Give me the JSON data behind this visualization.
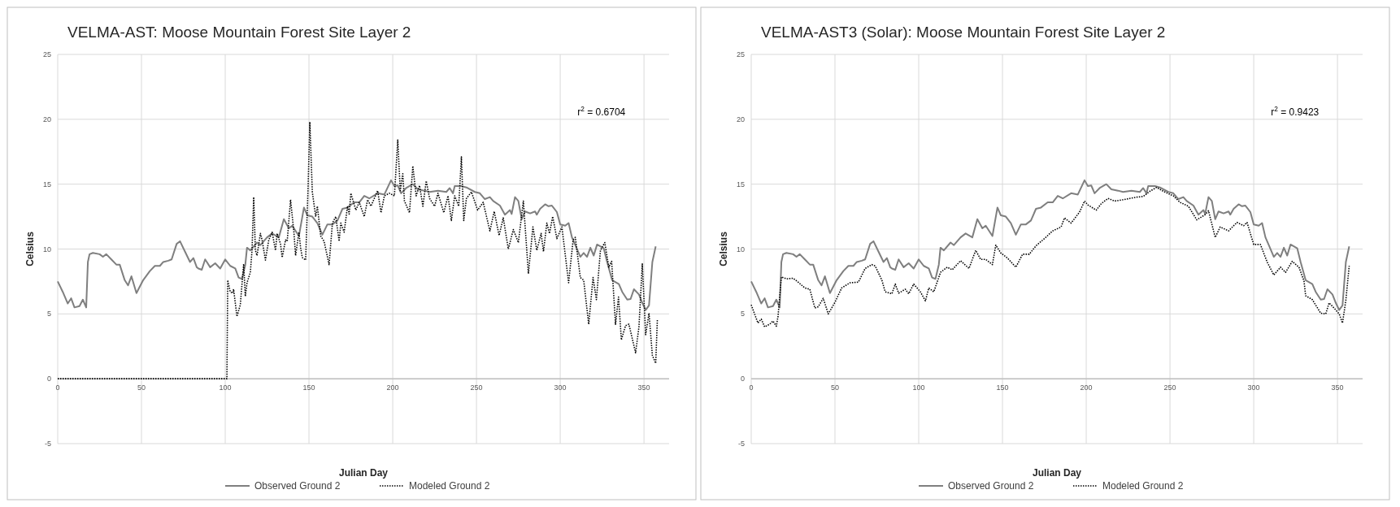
{
  "chart_data": [
    {
      "type": "line",
      "title": "VELMA-AST: Moose Mountain Forest Site Layer 2",
      "xlabel": "Julian Day",
      "ylabel": "Celsius",
      "annotations": [
        "r$^{2}$ = 0.6704"
      ],
      "xlim": [
        0,
        365
      ],
      "ylim": [
        -5,
        25
      ],
      "xticks": [
        0,
        50,
        100,
        150,
        200,
        250,
        300,
        350
      ],
      "yticks": [
        -5,
        0,
        5,
        10,
        15,
        20,
        25
      ],
      "grid": true,
      "legend": "bottom",
      "marker": "none",
      "series": [
        {
          "name": "Observed Ground 2",
          "color": "#7f7f7f",
          "line_style": "solid",
          "x": [
            0,
            3,
            6,
            8,
            10,
            13,
            15,
            17,
            18,
            19,
            21,
            25,
            27,
            29,
            32,
            35,
            37,
            40,
            42,
            44,
            47,
            51,
            55,
            58,
            61,
            63,
            66,
            68,
            71,
            73,
            76,
            79,
            81,
            83,
            84,
            86,
            88,
            91,
            94,
            97,
            100,
            103,
            106,
            108,
            110,
            112,
            113,
            115,
            119,
            121,
            125,
            128,
            132,
            135,
            138,
            140,
            144,
            147,
            149,
            152,
            155,
            158,
            161,
            164,
            167,
            170,
            173,
            177,
            180,
            183,
            186,
            191,
            195,
            199,
            201,
            203,
            205,
            208,
            212,
            215,
            219,
            222,
            227,
            232,
            234,
            236,
            237,
            241,
            244,
            249,
            252,
            255,
            258,
            260,
            264,
            267,
            270,
            271,
            273,
            275,
            277,
            279,
            282,
            285,
            286,
            288,
            291,
            293,
            295,
            298,
            300,
            303,
            305,
            307,
            309,
            312,
            314,
            316,
            318,
            320,
            322,
            326,
            328,
            331,
            335,
            337,
            340,
            342,
            344,
            347,
            349,
            351,
            353,
            355,
            357
          ],
          "values": [
            7.5,
            6.7,
            5.8,
            6.2,
            5.5,
            5.6,
            6.1,
            5.5,
            9.0,
            9.6,
            9.7,
            9.6,
            9.4,
            9.6,
            9.2,
            8.8,
            8.8,
            7.6,
            7.2,
            7.9,
            6.6,
            7.6,
            8.3,
            8.7,
            8.7,
            9.0,
            9.1,
            9.2,
            10.4,
            10.6,
            9.8,
            9.0,
            9.3,
            8.6,
            8.5,
            8.4,
            9.2,
            8.6,
            8.9,
            8.5,
            9.2,
            8.7,
            8.5,
            7.8,
            7.7,
            8.8,
            10.1,
            9.9,
            10.5,
            10.3,
            10.9,
            11.2,
            10.9,
            12.3,
            11.6,
            11.8,
            11.0,
            13.2,
            12.6,
            12.5,
            12.0,
            11.1,
            11.9,
            11.9,
            12.2,
            13.1,
            13.2,
            13.6,
            13.6,
            14.1,
            13.9,
            14.3,
            14.2,
            15.3,
            14.85,
            14.9,
            14.3,
            14.7,
            15.0,
            14.6,
            14.5,
            14.4,
            14.5,
            14.4,
            14.7,
            14.3,
            14.85,
            14.85,
            14.75,
            14.4,
            14.3,
            13.85,
            14.0,
            13.7,
            13.35,
            12.65,
            13.0,
            12.7,
            14.0,
            13.7,
            12.3,
            12.9,
            12.75,
            12.9,
            12.65,
            13.1,
            13.45,
            13.3,
            13.35,
            12.85,
            11.9,
            11.8,
            12.0,
            10.9,
            10.3,
            9.4,
            9.7,
            9.4,
            10.1,
            9.5,
            10.35,
            10.05,
            9.0,
            7.6,
            7.3,
            6.7,
            6.1,
            6.15,
            6.9,
            6.5,
            5.85,
            5.3,
            5.65,
            9.0,
            10.2
          ]
        },
        {
          "name": "Modeled Ground 2",
          "color": "#000000",
          "line_style": "dotted",
          "x": [
            0,
            101,
            101.5,
            103,
            104.5,
            105,
            107,
            109,
            111,
            112,
            113,
            115,
            116,
            117,
            118,
            119,
            121,
            122,
            124,
            126,
            128,
            130,
            131,
            133,
            134,
            136,
            137,
            139,
            141,
            142,
            144,
            145,
            146,
            148,
            149.5,
            150.5,
            152,
            154,
            155,
            157,
            159,
            162,
            164,
            166,
            168,
            169,
            171,
            173,
            174,
            175,
            178,
            180,
            183,
            185,
            187,
            191,
            193,
            195,
            198,
            201,
            203,
            204.5,
            206,
            207,
            210,
            212,
            214,
            216,
            218,
            220,
            222,
            225,
            227,
            230.5,
            233,
            235,
            237,
            239.4,
            241,
            242.4,
            244,
            247,
            250.7,
            254,
            258,
            260.6,
            263.5,
            266,
            269,
            272,
            275,
            278,
            281,
            283.7,
            286,
            288.6,
            290,
            292,
            293.6,
            295.5,
            298,
            301,
            305,
            307.7,
            309,
            312,
            314,
            317,
            319.6,
            321.6,
            324,
            326.6,
            329,
            330.7,
            333,
            334.8,
            336.5,
            339,
            341,
            345,
            347,
            349,
            351,
            353,
            355,
            357,
            358
          ],
          "values": [
            0,
            0,
            7.6,
            6.7,
            6.6,
            6.9,
            4.8,
            5.7,
            8.85,
            6.35,
            7.4,
            8.2,
            9.9,
            14.0,
            9.9,
            9.5,
            11.2,
            10.7,
            9.15,
            10.7,
            11.3,
            9.9,
            11.2,
            10.4,
            9.35,
            10.7,
            10.6,
            13.8,
            11.3,
            9.5,
            11.3,
            10.1,
            9.35,
            9.15,
            14.9,
            19.8,
            14.4,
            12.5,
            13.3,
            11.0,
            10.6,
            8.8,
            12.0,
            12.5,
            10.6,
            12.0,
            11.3,
            13.3,
            12.7,
            14.3,
            13.0,
            13.6,
            12.5,
            13.8,
            13.3,
            14.5,
            12.8,
            14.1,
            14.3,
            14.1,
            18.4,
            14.5,
            15.8,
            13.7,
            12.8,
            16.4,
            14.1,
            14.9,
            13.3,
            15.25,
            13.9,
            13.3,
            14.3,
            12.8,
            14.1,
            12.2,
            14.1,
            13.3,
            17.1,
            12.2,
            13.9,
            14.4,
            13.0,
            13.6,
            11.4,
            12.9,
            11.05,
            12.4,
            10.0,
            11.5,
            10.5,
            13.7,
            8.1,
            11.7,
            9.9,
            11.2,
            9.8,
            12.0,
            11.2,
            12.5,
            10.8,
            11.7,
            7.4,
            10.7,
            10.9,
            7.8,
            7.6,
            4.2,
            7.8,
            6.1,
            9.9,
            10.5,
            8.6,
            9.05,
            4.2,
            6.3,
            3.0,
            4.1,
            4.2,
            2.0,
            4.0,
            8.85,
            3.4,
            5.05,
            1.8,
            1.2,
            4.6
          ]
        }
      ]
    },
    {
      "type": "line",
      "title": "VELMA-AST3 (Solar): Moose Mountain Forest Site Layer 2",
      "xlabel": "Julian Day",
      "ylabel": "Celsius",
      "annotations": [
        "r$^{2}$ = 0.9423"
      ],
      "xlim": [
        0,
        365
      ],
      "ylim": [
        -5,
        25
      ],
      "xticks": [
        0,
        50,
        100,
        150,
        200,
        250,
        300,
        350
      ],
      "yticks": [
        -5,
        0,
        5,
        10,
        15,
        20,
        25
      ],
      "grid": true,
      "legend": "bottom",
      "marker": "none",
      "series": [
        {
          "name": "Observed Ground 2",
          "color": "#7f7f7f",
          "line_style": "solid",
          "x": [
            0,
            3,
            6,
            8,
            10,
            13,
            15,
            17,
            18,
            19,
            21,
            25,
            27,
            29,
            32,
            35,
            37,
            40,
            42,
            44,
            47,
            51,
            55,
            58,
            61,
            63,
            66,
            68,
            71,
            73,
            76,
            79,
            81,
            83,
            84,
            86,
            88,
            91,
            94,
            97,
            100,
            103,
            106,
            108,
            110,
            112,
            113,
            115,
            119,
            121,
            125,
            128,
            132,
            135,
            138,
            140,
            144,
            147,
            149,
            152,
            155,
            158,
            161,
            164,
            167,
            170,
            173,
            177,
            180,
            183,
            186,
            191,
            195,
            199,
            201,
            203,
            205,
            208,
            212,
            215,
            219,
            222,
            227,
            232,
            234,
            236,
            237,
            241,
            244,
            249,
            252,
            255,
            258,
            260,
            264,
            267,
            270,
            271,
            273,
            275,
            277,
            279,
            282,
            285,
            286,
            288,
            291,
            293,
            295,
            298,
            300,
            303,
            305,
            307,
            309,
            312,
            314,
            316,
            318,
            320,
            322,
            326,
            328,
            331,
            335,
            337,
            340,
            342,
            344,
            347,
            349,
            351,
            353,
            355,
            357
          ],
          "values": [
            7.5,
            6.7,
            5.8,
            6.2,
            5.5,
            5.6,
            6.1,
            5.5,
            9.0,
            9.6,
            9.7,
            9.6,
            9.4,
            9.6,
            9.2,
            8.8,
            8.8,
            7.6,
            7.2,
            7.9,
            6.6,
            7.6,
            8.3,
            8.7,
            8.7,
            9.0,
            9.1,
            9.2,
            10.4,
            10.6,
            9.8,
            9.0,
            9.3,
            8.6,
            8.5,
            8.4,
            9.2,
            8.6,
            8.9,
            8.5,
            9.2,
            8.7,
            8.5,
            7.8,
            7.7,
            8.8,
            10.1,
            9.9,
            10.5,
            10.3,
            10.9,
            11.2,
            10.9,
            12.3,
            11.6,
            11.8,
            11.0,
            13.2,
            12.6,
            12.5,
            12.0,
            11.1,
            11.9,
            11.9,
            12.2,
            13.1,
            13.2,
            13.6,
            13.6,
            14.1,
            13.9,
            14.3,
            14.2,
            15.3,
            14.85,
            14.9,
            14.3,
            14.7,
            15.0,
            14.6,
            14.5,
            14.4,
            14.5,
            14.4,
            14.7,
            14.3,
            14.85,
            14.85,
            14.75,
            14.4,
            14.3,
            13.85,
            14.0,
            13.7,
            13.35,
            12.65,
            13.0,
            12.7,
            14.0,
            13.7,
            12.3,
            12.9,
            12.75,
            12.9,
            12.65,
            13.1,
            13.45,
            13.3,
            13.35,
            12.85,
            11.9,
            11.8,
            12.0,
            10.9,
            10.3,
            9.4,
            9.7,
            9.4,
            10.1,
            9.5,
            10.35,
            10.05,
            9.0,
            7.6,
            7.3,
            6.7,
            6.1,
            6.15,
            6.9,
            6.5,
            5.85,
            5.3,
            5.65,
            9.0,
            10.2
          ]
        },
        {
          "name": "Modeled Ground 2",
          "color": "#000000",
          "line_style": "dotted",
          "x": [
            0,
            2,
            4,
            6,
            8,
            11,
            13,
            15,
            16,
            18,
            21,
            25,
            28,
            32,
            35,
            38,
            40,
            43,
            46,
            50,
            54,
            59,
            64,
            68,
            72,
            74,
            78,
            80,
            84,
            86,
            88,
            92,
            94,
            97,
            101,
            104,
            106,
            109,
            113,
            117,
            120,
            125,
            130,
            134,
            137,
            140,
            144,
            146,
            149,
            153,
            158,
            162,
            166,
            170,
            175,
            180,
            185,
            187,
            191,
            196,
            199,
            201,
            206,
            209,
            213,
            217,
            222,
            226,
            230,
            234,
            238,
            242,
            246,
            252,
            256,
            261,
            266,
            271,
            273,
            277,
            280,
            285,
            290,
            294,
            296,
            300,
            304,
            308,
            312,
            316,
            319,
            323,
            327,
            330,
            331,
            335,
            340,
            343,
            345,
            348,
            351,
            353,
            355,
            357
          ],
          "values": [
            5.7,
            5.0,
            4.3,
            4.6,
            4.0,
            4.2,
            4.45,
            4.05,
            4.8,
            7.85,
            7.7,
            7.75,
            7.45,
            7.0,
            6.9,
            5.45,
            5.55,
            6.2,
            5.0,
            5.9,
            7.0,
            7.4,
            7.45,
            8.5,
            8.8,
            8.7,
            7.6,
            6.7,
            6.55,
            7.3,
            6.6,
            6.9,
            6.55,
            7.3,
            6.7,
            6.0,
            7.0,
            6.7,
            8.2,
            8.6,
            8.4,
            9.1,
            8.5,
            9.9,
            9.2,
            9.2,
            8.8,
            10.3,
            9.7,
            9.3,
            8.6,
            9.6,
            9.6,
            10.25,
            10.8,
            11.4,
            11.7,
            12.4,
            12.0,
            12.85,
            13.7,
            13.4,
            13.0,
            13.5,
            13.9,
            13.7,
            13.8,
            13.9,
            14.0,
            14.05,
            14.45,
            14.75,
            14.45,
            14.1,
            13.6,
            13.3,
            12.25,
            12.65,
            12.95,
            10.9,
            11.7,
            11.4,
            12.05,
            11.8,
            12.05,
            10.35,
            10.35,
            9.0,
            8.0,
            8.6,
            8.2,
            9.05,
            8.6,
            7.55,
            6.4,
            6.1,
            5.05,
            5.0,
            5.85,
            5.45,
            5.0,
            4.3,
            6.05,
            8.7
          ]
        }
      ]
    }
  ]
}
